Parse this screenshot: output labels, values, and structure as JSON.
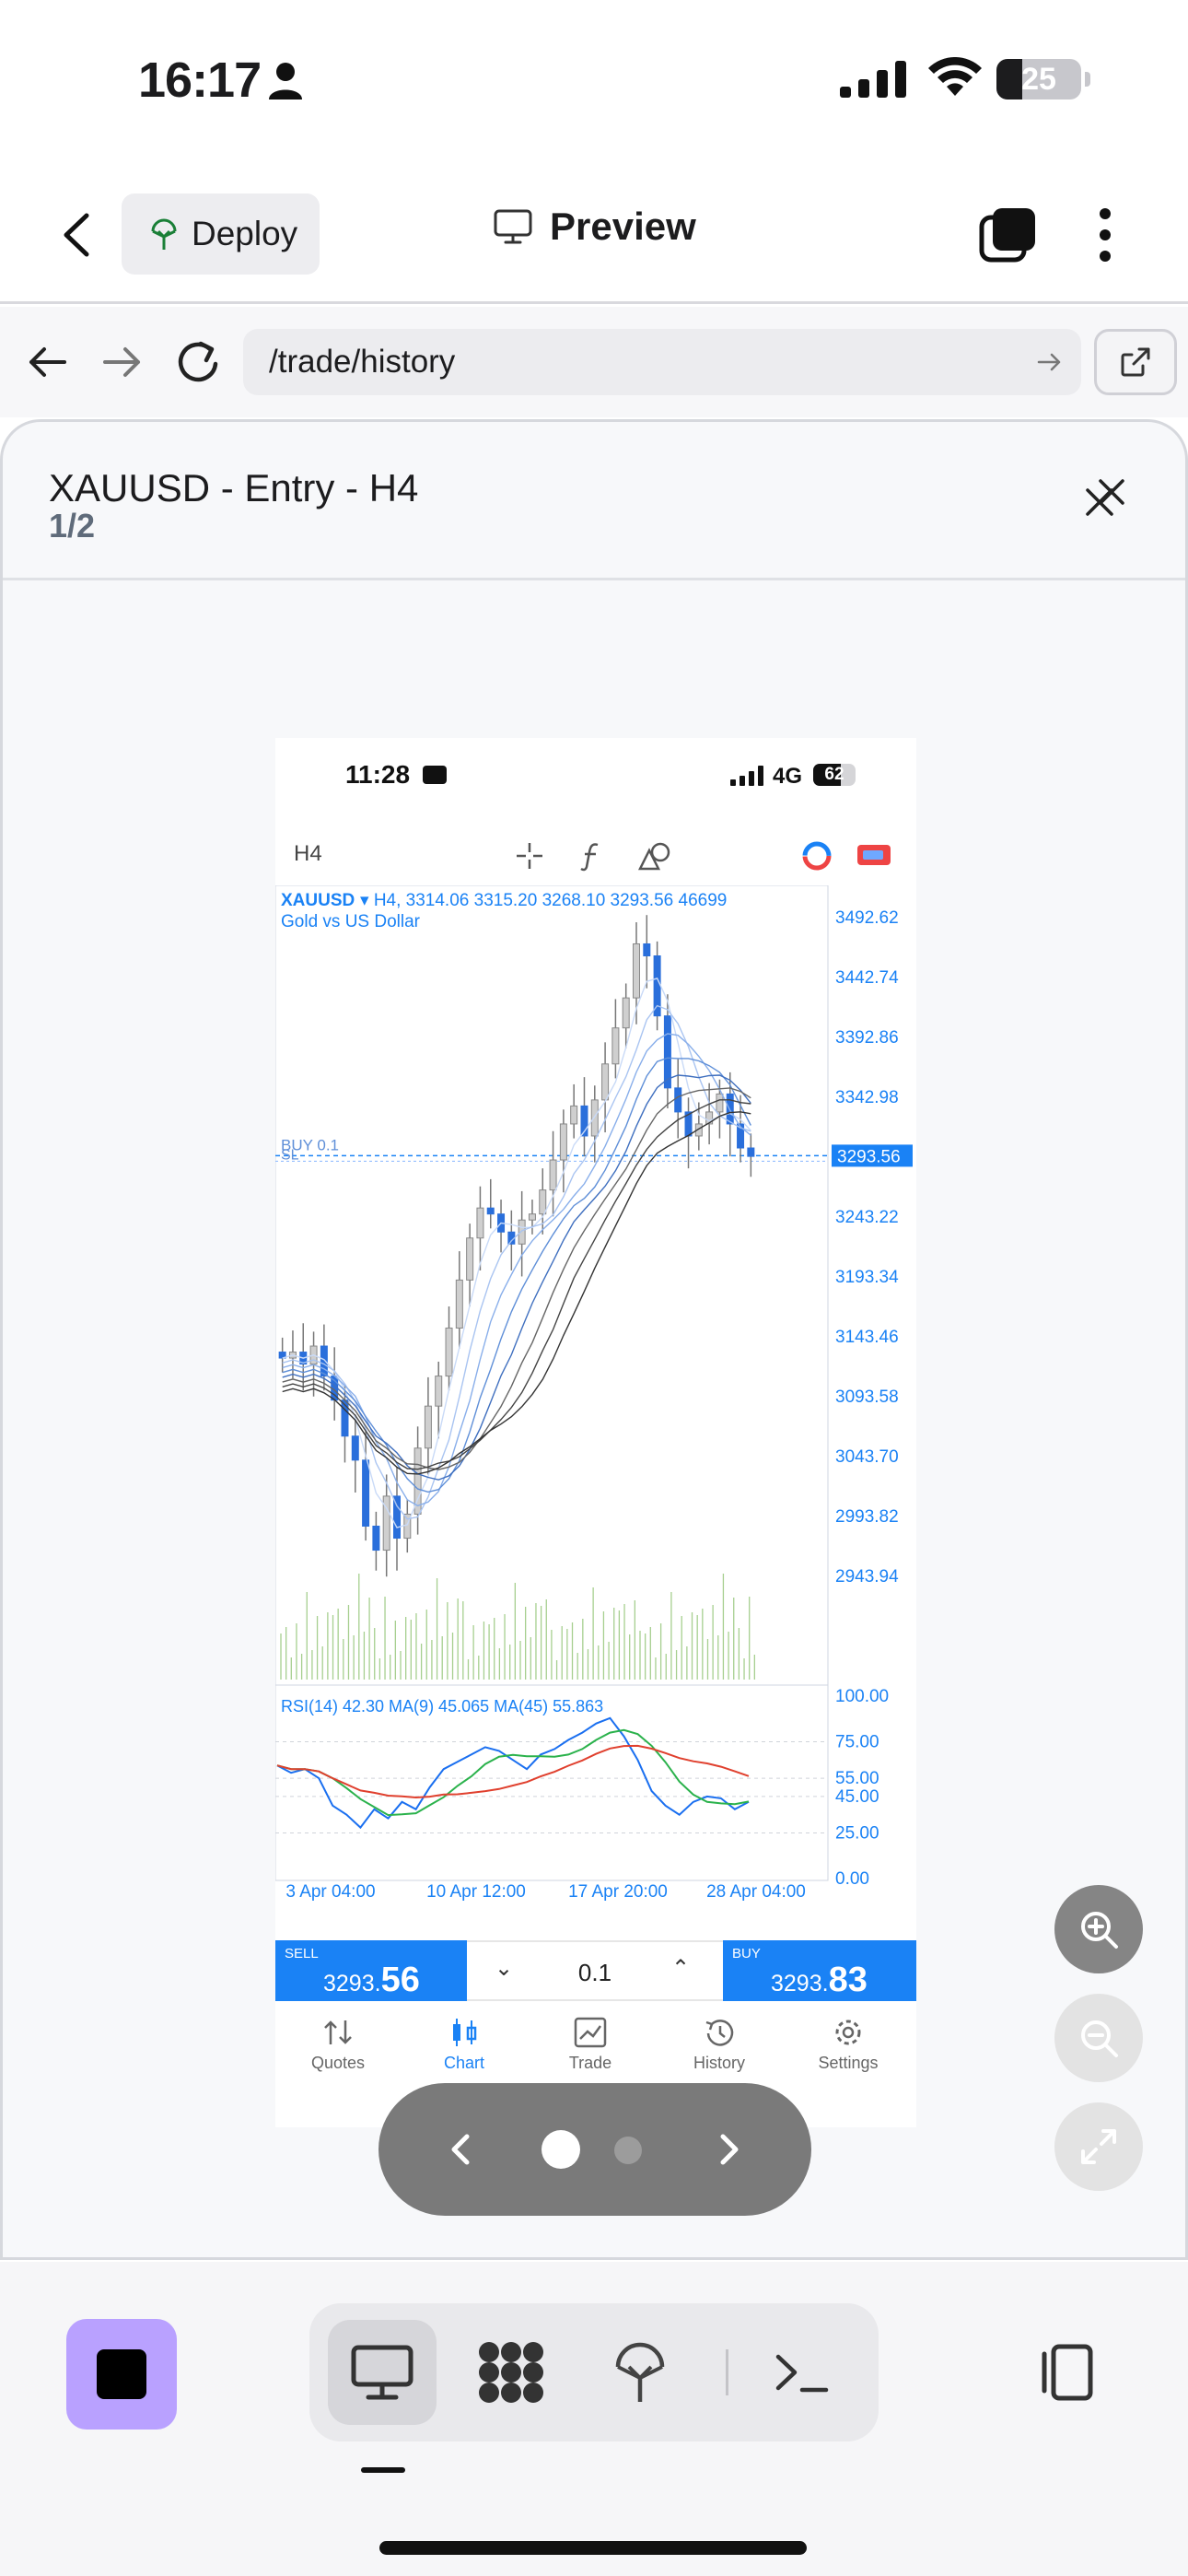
{
  "status_bar": {
    "time": "16:17",
    "battery": "25"
  },
  "header": {
    "deploy_label": "Deploy",
    "preview_label": "Preview"
  },
  "url_bar": {
    "path": "/trade/history"
  },
  "modal": {
    "title": "XAUUSD - Entry - H4",
    "counter": "1/2"
  },
  "screenshot": {
    "status": {
      "time": "11:28",
      "network": "4G",
      "battery": "62"
    },
    "timeframe": "H4",
    "chart_data": {
      "type": "candlestick",
      "symbol": "XAUUSD",
      "info_line": "▾ H4, 3314.06 3315.20 3268.10 3293.56 46699",
      "description": "Gold vs US Dollar",
      "order_line_label": "BUY 0.1",
      "sl_label": "SL",
      "current_price": "3293.56",
      "price_axis": [
        "3492.62",
        "3442.74",
        "3392.86",
        "3342.98",
        "3243.22",
        "3193.34",
        "3143.46",
        "3093.58",
        "3043.70",
        "2993.82",
        "2943.94"
      ],
      "time_axis": [
        "3 Apr 04:00",
        "10 Apr 12:00",
        "17 Apr 20:00",
        "28 Apr 04:00"
      ],
      "close_path": [
        3125,
        3130,
        3120,
        3135,
        3110,
        3090,
        3060,
        3040,
        2985,
        2965,
        3010,
        2975,
        2995,
        3050,
        3085,
        3110,
        3150,
        3190,
        3225,
        3250,
        3245,
        3230,
        3220,
        3240,
        3245,
        3265,
        3290,
        3320,
        3335,
        3310,
        3340,
        3370,
        3400,
        3425,
        3470,
        3460,
        3410,
        3350,
        3330,
        3310,
        3320,
        3330,
        3345,
        3320,
        3300,
        3293
      ],
      "rsi": {
        "label": "RSI(14) 42.30 MA(9) 45.065 MA(45) 55.863",
        "levels": [
          "100.00",
          "75.00",
          "55.00",
          "45.00",
          "25.00",
          "0.00"
        ],
        "values": [
          62,
          58,
          60,
          55,
          40,
          35,
          28,
          38,
          33,
          42,
          38,
          50,
          60,
          64,
          68,
          72,
          70,
          65,
          60,
          68,
          71,
          76,
          80,
          85,
          88,
          78,
          65,
          48,
          40,
          35,
          42,
          45,
          44,
          38,
          42
        ]
      }
    },
    "sell": {
      "label": "SELL",
      "price_main": "3293.",
      "price_big": "56"
    },
    "buy": {
      "label": "BUY",
      "price_main": "3293.",
      "price_big": "83"
    },
    "volume": "0.1",
    "tabs": [
      "Quotes",
      "Chart",
      "Trade",
      "History",
      "Settings"
    ]
  }
}
